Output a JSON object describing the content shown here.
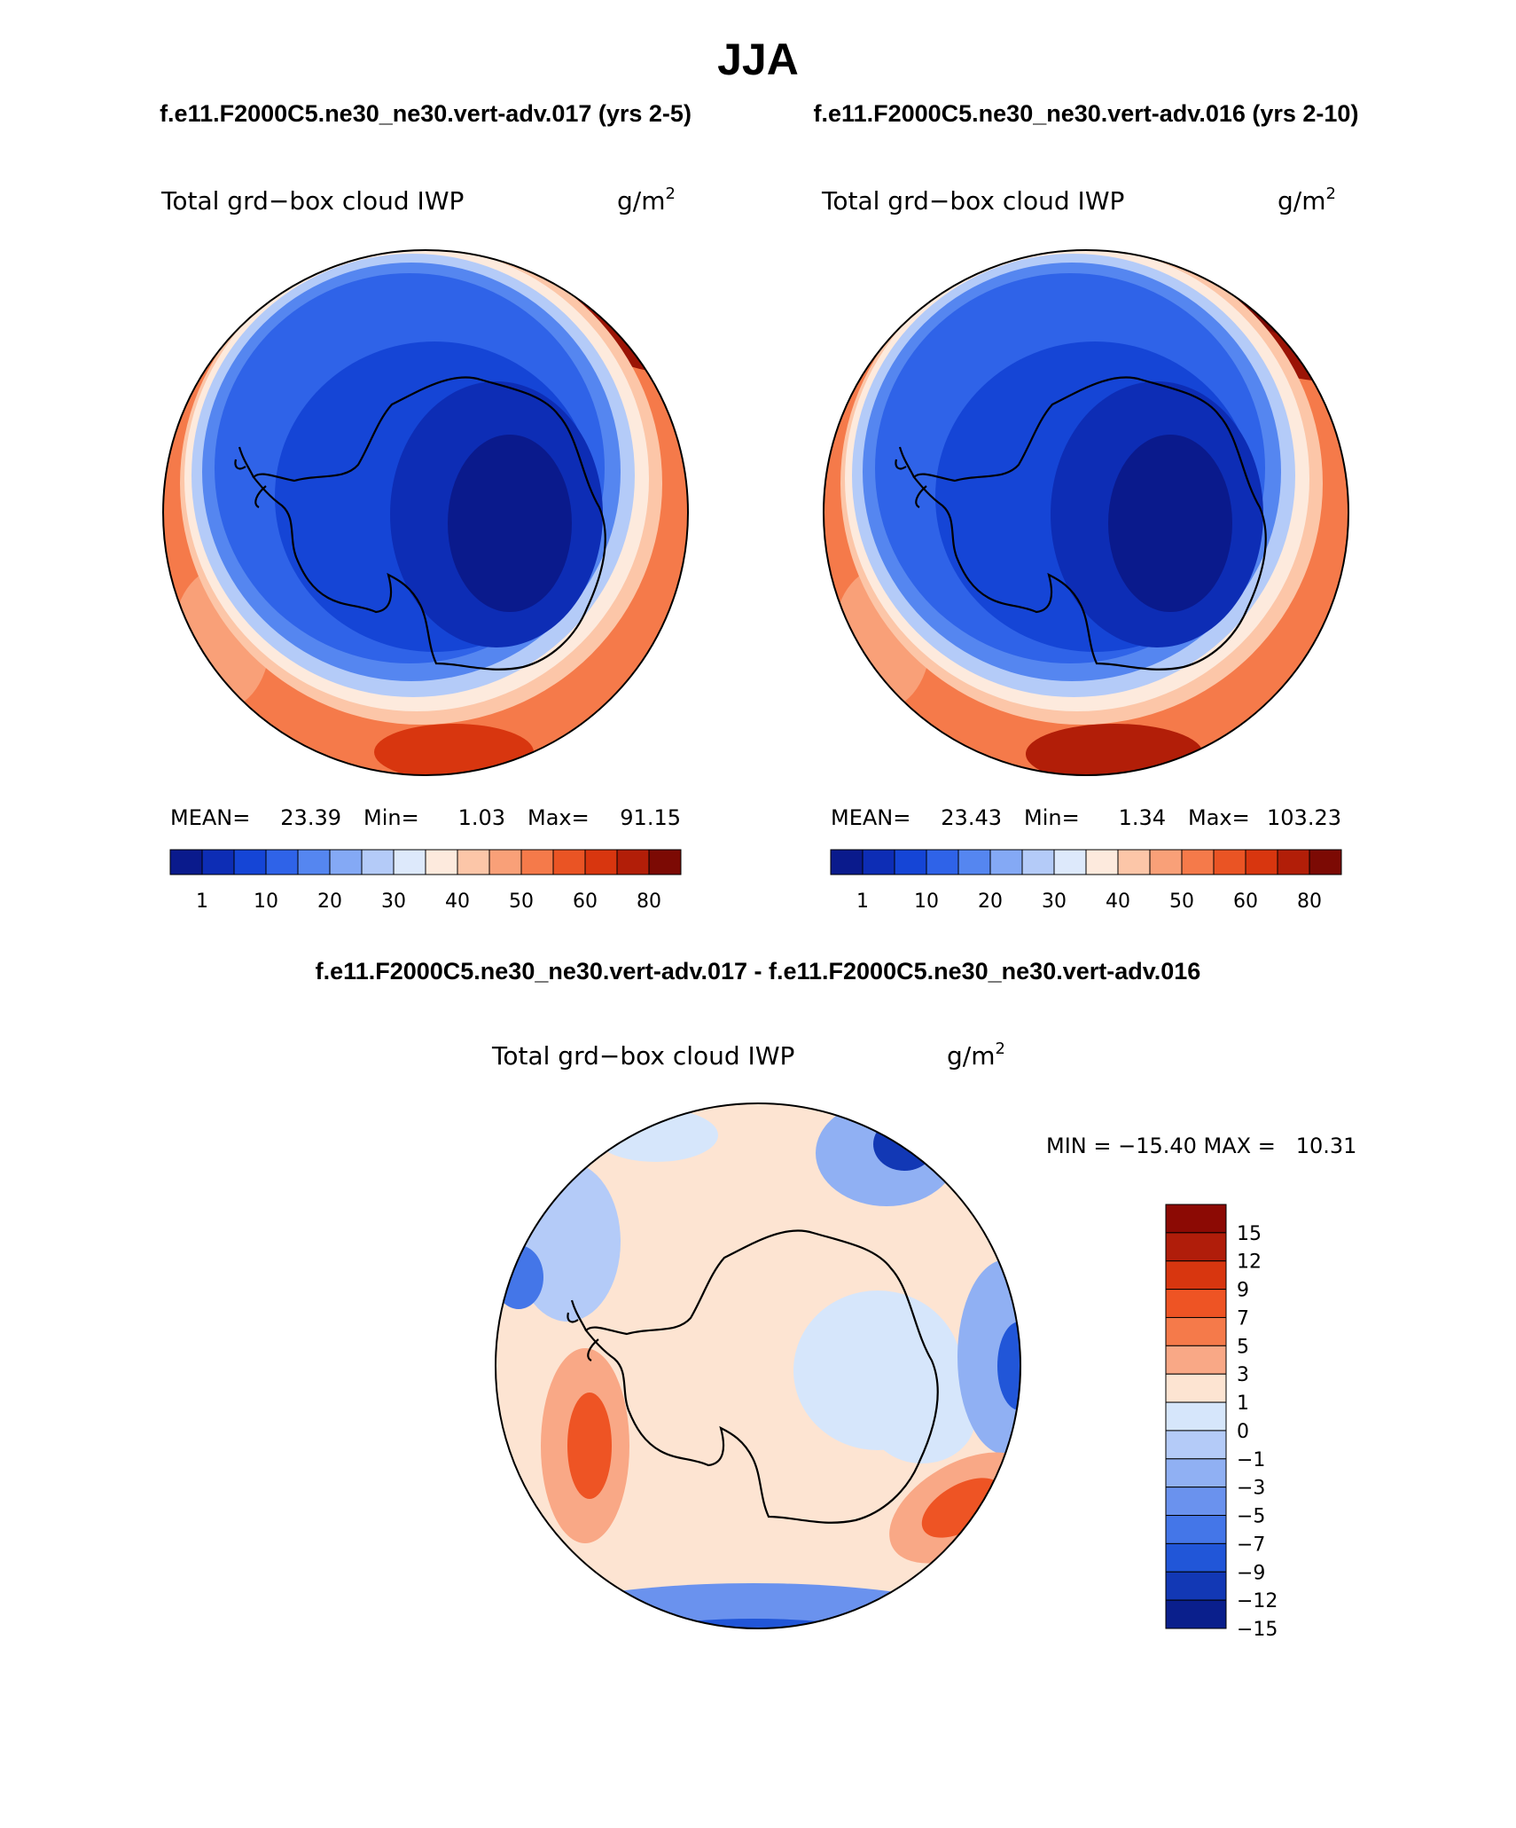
{
  "chart_data": {
    "type": "heatmap",
    "title": "JJA",
    "subtitles": [
      "f.e11.F2000C5.ne30_ne30.vert-adv.017 (yrs 2-5)",
      "f.e11.F2000C5.ne30_ne30.vert-adv.016 (yrs 2-10)"
    ],
    "diff_title": "f.e11.F2000C5.ne30_ne30.vert-adv.017 - f.e11.F2000C5.ne30_ne30.vert-adv.016",
    "panels": [
      {
        "name": "case-017",
        "variable": "Total grd−box cloud IWP",
        "units_base": "g/m",
        "units_exp": "2",
        "stats": {
          "mean_label": "MEAN=",
          "mean": "23.39",
          "min_label": "Min=",
          "min": "1.03",
          "max_label": "Max=",
          "max": "91.15"
        },
        "colorbar": {
          "colors": [
            "#0a1a8c",
            "#0d2db5",
            "#1545d6",
            "#2f63e8",
            "#5586f0",
            "#84a9f5",
            "#b4cbf8",
            "#dde9fb",
            "#fdeadd",
            "#fcc6a8",
            "#f9a078",
            "#f57a4a",
            "#ea5424",
            "#d8360f",
            "#b21e08",
            "#7c0a04"
          ],
          "ticks": [
            "1",
            "10",
            "20",
            "30",
            "40",
            "50",
            "60",
            "80"
          ]
        }
      },
      {
        "name": "case-016",
        "variable": "Total grd−box cloud IWP",
        "units_base": "g/m",
        "units_exp": "2",
        "stats": {
          "mean_label": "MEAN=",
          "mean": "23.43",
          "min_label": "Min=",
          "min": "1.34",
          "max_label": "Max=",
          "max": "103.23"
        },
        "colorbar": {
          "colors": [
            "#0a1a8c",
            "#0d2db5",
            "#1545d6",
            "#2f63e8",
            "#5586f0",
            "#84a9f5",
            "#b4cbf8",
            "#dde9fb",
            "#fdeadd",
            "#fcc6a8",
            "#f9a078",
            "#f57a4a",
            "#ea5424",
            "#d8360f",
            "#b21e08",
            "#7c0a04"
          ],
          "ticks": [
            "1",
            "10",
            "20",
            "30",
            "40",
            "50",
            "60",
            "80"
          ]
        }
      },
      {
        "name": "difference",
        "variable": "Total grd−box cloud IWP",
        "units_base": "g/m",
        "units_exp": "2",
        "stats": {
          "text": "MIN = −15.40 MAX =   10.31"
        },
        "colorbar": {
          "colors": [
            "#8c0a04",
            "#b01d0a",
            "#d8360f",
            "#ee5424",
            "#f57a4a",
            "#f9a886",
            "#fde4d2",
            "#d6e6fb",
            "#b4cbf8",
            "#90b0f3",
            "#6a92ee",
            "#4476e8",
            "#2156d8",
            "#1238b5",
            "#0a1f8c"
          ],
          "ticks": [
            "15",
            "12",
            "9",
            "7",
            "5",
            "3",
            "1",
            "0",
            "−1",
            "−3",
            "−5",
            "−7",
            "−9",
            "−12",
            "−15"
          ]
        }
      }
    ]
  }
}
